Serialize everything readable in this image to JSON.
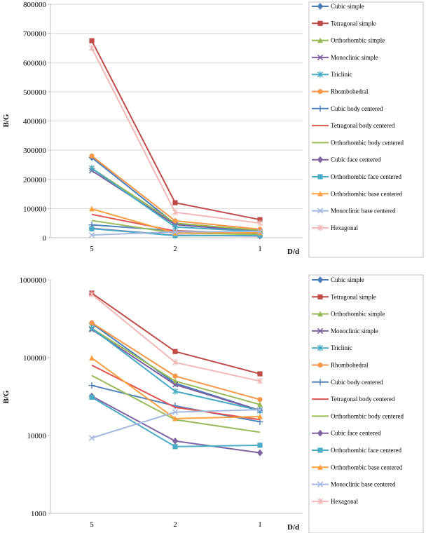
{
  "chart_data": [
    {
      "type": "line",
      "scale": "linear",
      "title": "",
      "xlabel": "D/d",
      "ylabel": "B/G",
      "categories": [
        "5",
        "2",
        "1"
      ],
      "ylim": [
        0,
        800000
      ],
      "yticks": [
        0,
        100000,
        200000,
        300000,
        400000,
        500000,
        600000,
        700000,
        800000
      ],
      "ytick_labels": [
        "0",
        "100000",
        "200000",
        "300000",
        "400000",
        "500000",
        "600000",
        "700000",
        "800000"
      ],
      "grid": true,
      "legend_position": "right",
      "series": [
        {
          "name": "Cubic simple",
          "values": [
            275000,
            47000,
            21000
          ],
          "color": "#4a7ebb",
          "marker": "diamond"
        },
        {
          "name": "Tetragonal simple",
          "values": [
            675000,
            120000,
            62000
          ],
          "color": "#be4b48",
          "marker": "square"
        },
        {
          "name": "Orthorhombic simple",
          "values": [
            238000,
            50000,
            25000
          ],
          "color": "#98b954",
          "marker": "triangle"
        },
        {
          "name": "Monoclinic simple",
          "values": [
            230000,
            45000,
            21000
          ],
          "color": "#7d60a0",
          "marker": "x"
        },
        {
          "name": "Triclinic",
          "values": [
            238000,
            37000,
            21000
          ],
          "color": "#46aac5",
          "marker": "star"
        },
        {
          "name": "Rhombohedral",
          "values": [
            280000,
            58000,
            29000
          ],
          "color": "#f79646",
          "marker": "circle"
        },
        {
          "name": "Cubic body centered",
          "values": [
            44000,
            24000,
            15000
          ],
          "color": "#4f81bd",
          "marker": "plus"
        },
        {
          "name": "Tetragonal body centered",
          "values": [
            80000,
            23000,
            16000
          ],
          "color": "#e0524f",
          "marker": "none"
        },
        {
          "name": "Orthorhombic body centered",
          "values": [
            59000,
            16000,
            11000
          ],
          "color": "#9bbb59",
          "marker": "none"
        },
        {
          "name": "Cubic face centered",
          "values": [
            32000,
            8500,
            6000
          ],
          "color": "#8064a2",
          "marker": "diamond"
        },
        {
          "name": "Orthorhombic face centered",
          "values": [
            31000,
            7200,
            7500
          ],
          "color": "#4bacc6",
          "marker": "square"
        },
        {
          "name": "Orthorhombic base centered",
          "values": [
            99000,
            16500,
            17500
          ],
          "color": "#ffa040",
          "marker": "triangle"
        },
        {
          "name": "Monoclinic base centered",
          "values": [
            9300,
            20000,
            21500
          ],
          "color": "#a5b8e0",
          "marker": "x"
        },
        {
          "name": "Hexagonal",
          "values": [
            650000,
            87000,
            50000
          ],
          "color": "#f2b7b6",
          "marker": "star"
        }
      ]
    },
    {
      "type": "line",
      "scale": "log",
      "title": "",
      "xlabel": "D/d",
      "ylabel": "B/G",
      "categories": [
        "5",
        "2",
        "1"
      ],
      "ylim": [
        1000,
        1000000
      ],
      "yticks": [
        1000,
        10000,
        100000,
        1000000
      ],
      "ytick_labels": [
        "1000",
        "10000",
        "100000",
        "1000000"
      ],
      "grid": false,
      "legend_position": "right",
      "series": [
        {
          "name": "Cubic simple",
          "values": [
            275000,
            47000,
            21000
          ],
          "color": "#4a7ebb",
          "marker": "diamond"
        },
        {
          "name": "Tetragonal simple",
          "values": [
            675000,
            120000,
            62000
          ],
          "color": "#be4b48",
          "marker": "square"
        },
        {
          "name": "Orthorhombic simple",
          "values": [
            238000,
            50000,
            25000
          ],
          "color": "#98b954",
          "marker": "triangle"
        },
        {
          "name": "Monoclinic simple",
          "values": [
            230000,
            45000,
            21000
          ],
          "color": "#7d60a0",
          "marker": "x"
        },
        {
          "name": "Triclinic",
          "values": [
            238000,
            37000,
            21000
          ],
          "color": "#46aac5",
          "marker": "star"
        },
        {
          "name": "Rhombohedral",
          "values": [
            280000,
            58000,
            29000
          ],
          "color": "#f79646",
          "marker": "circle"
        },
        {
          "name": "Cubic body centered",
          "values": [
            44000,
            24000,
            15000
          ],
          "color": "#4f81bd",
          "marker": "plus"
        },
        {
          "name": "Tetragonal body centered",
          "values": [
            80000,
            23000,
            16000
          ],
          "color": "#e0524f",
          "marker": "none"
        },
        {
          "name": "Orthorhombic body centered",
          "values": [
            59000,
            16000,
            11000
          ],
          "color": "#9bbb59",
          "marker": "none"
        },
        {
          "name": "Cubic face centered",
          "values": [
            32000,
            8500,
            6000
          ],
          "color": "#8064a2",
          "marker": "diamond"
        },
        {
          "name": "Orthorhombic face centered",
          "values": [
            31000,
            7200,
            7500
          ],
          "color": "#4bacc6",
          "marker": "square"
        },
        {
          "name": "Orthorhombic base centered",
          "values": [
            99000,
            16500,
            17500
          ],
          "color": "#ffa040",
          "marker": "triangle"
        },
        {
          "name": "Monoclinic base centered",
          "values": [
            9300,
            20000,
            21500
          ],
          "color": "#a5b8e0",
          "marker": "x"
        },
        {
          "name": "Hexagonal",
          "values": [
            650000,
            87000,
            50000
          ],
          "color": "#f2b7b6",
          "marker": "star"
        }
      ]
    }
  ]
}
